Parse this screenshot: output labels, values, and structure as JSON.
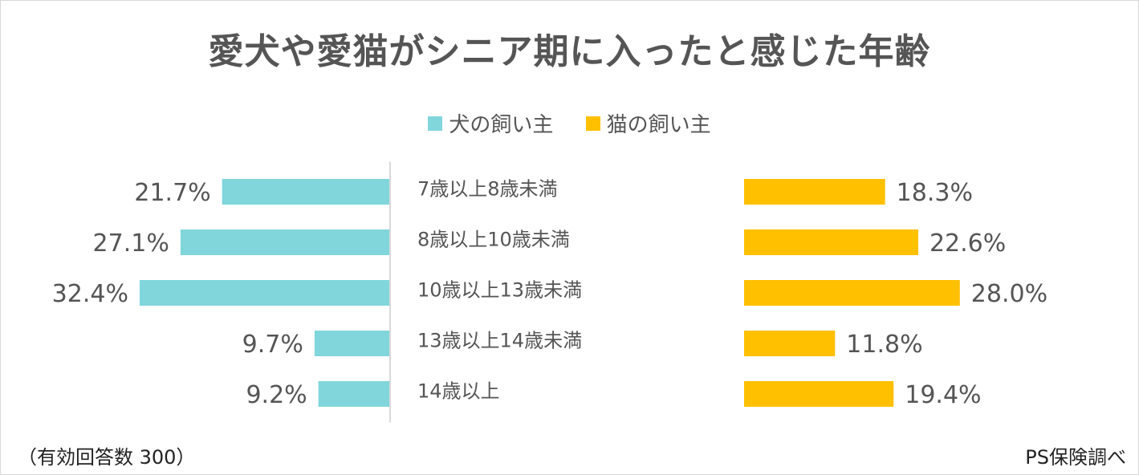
{
  "chart_data": {
    "type": "bar",
    "title": "愛犬や愛猫がシニア期に入ったと感じた年齢",
    "categories": [
      "7歳以上8歳未満",
      "8歳以上10歳未満",
      "10歳以上13歳未満",
      "13歳以上14歳未満",
      "14歳以上"
    ],
    "series": [
      {
        "name": "犬の飼い主",
        "values": [
          21.7,
          27.1,
          32.4,
          9.7,
          9.2
        ],
        "labels": [
          "21.7%",
          "27.1%",
          "32.4%",
          "9.7%",
          "9.2%"
        ],
        "color": "#81D6DC"
      },
      {
        "name": "猫の飼い主",
        "values": [
          18.3,
          22.6,
          28.0,
          11.8,
          19.4
        ],
        "labels": [
          "18.3%",
          "22.6%",
          "28.0%",
          "11.8%",
          "19.4%"
        ],
        "color": "#FFC000"
      }
    ],
    "unit": "%",
    "grid": false,
    "legend": "top-center"
  },
  "footnote_left": "（有効回答数 300）",
  "footnote_right": "PS保険調べ",
  "colors": {
    "title": "#555555",
    "axis_line": "#d9d9d9",
    "label": "#555555"
  }
}
